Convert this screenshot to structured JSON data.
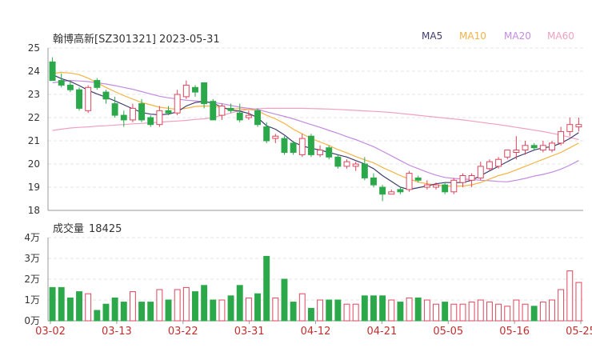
{
  "chart_data": {
    "type": "candlestick",
    "title": "翰博高新[SZ301321] 2023-05-31",
    "legend": [
      {
        "name": "MA5",
        "color": "#3d3d70"
      },
      {
        "name": "MA10",
        "color": "#f5b342"
      },
      {
        "name": "MA20",
        "color": "#c48be0"
      },
      {
        "name": "MA60",
        "color": "#f0a0c0"
      }
    ],
    "price_axis": {
      "min": 18,
      "max": 25,
      "ticks": [
        25,
        24,
        23,
        22,
        21,
        20,
        19,
        18
      ]
    },
    "volume_axis": {
      "min": 0,
      "max": 40000,
      "ticks": [
        "4万",
        "3万",
        "2万",
        "1万",
        "0万"
      ]
    },
    "x_tick_labels": [
      "03-02",
      "03-13",
      "03-22",
      "03-31",
      "04-12",
      "04-21",
      "05-05",
      "05-16",
      "05-25"
    ],
    "volume_label": "成交量",
    "volume_value": "18425",
    "candles": [
      {
        "o": 24.4,
        "h": 24.6,
        "l": 23.6,
        "c": 23.6
      },
      {
        "o": 23.6,
        "h": 23.9,
        "l": 23.3,
        "c": 23.4
      },
      {
        "o": 23.4,
        "h": 23.6,
        "l": 23.1,
        "c": 23.2
      },
      {
        "o": 23.2,
        "h": 23.3,
        "l": 22.3,
        "c": 22.4
      },
      {
        "o": 22.3,
        "h": 23.4,
        "l": 22.2,
        "c": 23.3
      },
      {
        "o": 23.6,
        "h": 23.7,
        "l": 23.2,
        "c": 23.3
      },
      {
        "o": 23.1,
        "h": 23.2,
        "l": 22.6,
        "c": 22.8
      },
      {
        "o": 22.6,
        "h": 22.9,
        "l": 22.0,
        "c": 22.1
      },
      {
        "o": 22.1,
        "h": 22.3,
        "l": 21.6,
        "c": 21.9
      },
      {
        "o": 21.9,
        "h": 22.6,
        "l": 21.8,
        "c": 22.4
      },
      {
        "o": 22.6,
        "h": 22.8,
        "l": 21.8,
        "c": 21.9
      },
      {
        "o": 22.0,
        "h": 22.1,
        "l": 21.6,
        "c": 21.7
      },
      {
        "o": 21.7,
        "h": 22.5,
        "l": 21.6,
        "c": 22.3
      },
      {
        "o": 22.3,
        "h": 22.5,
        "l": 22.1,
        "c": 22.2
      },
      {
        "o": 22.2,
        "h": 23.2,
        "l": 22.1,
        "c": 23.0
      },
      {
        "o": 22.9,
        "h": 23.6,
        "l": 22.8,
        "c": 23.4
      },
      {
        "o": 23.3,
        "h": 23.4,
        "l": 22.9,
        "c": 23.1
      },
      {
        "o": 23.5,
        "h": 23.5,
        "l": 22.4,
        "c": 22.6
      },
      {
        "o": 22.7,
        "h": 22.8,
        "l": 21.9,
        "c": 21.9
      },
      {
        "o": 22.1,
        "h": 22.6,
        "l": 21.9,
        "c": 22.5
      },
      {
        "o": 22.4,
        "h": 22.6,
        "l": 22.2,
        "c": 22.3
      },
      {
        "o": 22.2,
        "h": 22.6,
        "l": 21.8,
        "c": 21.9
      },
      {
        "o": 22.0,
        "h": 22.3,
        "l": 21.9,
        "c": 22.1
      },
      {
        "o": 22.3,
        "h": 22.4,
        "l": 21.6,
        "c": 21.7
      },
      {
        "o": 21.6,
        "h": 21.8,
        "l": 20.9,
        "c": 21.0
      },
      {
        "o": 21.1,
        "h": 21.3,
        "l": 20.9,
        "c": 21.2
      },
      {
        "o": 21.1,
        "h": 21.2,
        "l": 20.4,
        "c": 20.5
      },
      {
        "o": 20.9,
        "h": 21.0,
        "l": 20.4,
        "c": 20.5
      },
      {
        "o": 20.4,
        "h": 21.3,
        "l": 20.3,
        "c": 21.1
      },
      {
        "o": 21.2,
        "h": 21.3,
        "l": 20.3,
        "c": 20.4
      },
      {
        "o": 20.4,
        "h": 20.8,
        "l": 20.3,
        "c": 20.6
      },
      {
        "o": 20.7,
        "h": 20.8,
        "l": 20.2,
        "c": 20.3
      },
      {
        "o": 20.3,
        "h": 20.4,
        "l": 19.8,
        "c": 19.9
      },
      {
        "o": 19.9,
        "h": 20.2,
        "l": 19.8,
        "c": 20.1
      },
      {
        "o": 19.9,
        "h": 20.1,
        "l": 19.7,
        "c": 20.0
      },
      {
        "o": 20.0,
        "h": 20.3,
        "l": 19.3,
        "c": 19.4
      },
      {
        "o": 19.4,
        "h": 19.6,
        "l": 19.0,
        "c": 19.1
      },
      {
        "o": 19.0,
        "h": 19.1,
        "l": 18.4,
        "c": 18.7
      },
      {
        "o": 18.7,
        "h": 18.9,
        "l": 18.7,
        "c": 18.8
      },
      {
        "o": 18.9,
        "h": 19.0,
        "l": 18.7,
        "c": 18.8
      },
      {
        "o": 18.9,
        "h": 19.7,
        "l": 18.8,
        "c": 19.6
      },
      {
        "o": 19.4,
        "h": 19.5,
        "l": 19.2,
        "c": 19.3
      },
      {
        "o": 19.0,
        "h": 19.3,
        "l": 18.9,
        "c": 19.1
      },
      {
        "o": 19.0,
        "h": 19.2,
        "l": 18.9,
        "c": 19.1
      },
      {
        "o": 19.1,
        "h": 19.2,
        "l": 18.7,
        "c": 18.8
      },
      {
        "o": 18.8,
        "h": 19.4,
        "l": 18.7,
        "c": 19.3
      },
      {
        "o": 19.2,
        "h": 19.6,
        "l": 19.0,
        "c": 19.5
      },
      {
        "o": 19.3,
        "h": 19.6,
        "l": 19.0,
        "c": 19.5
      },
      {
        "o": 19.4,
        "h": 20.1,
        "l": 19.3,
        "c": 19.9
      },
      {
        "o": 19.8,
        "h": 20.2,
        "l": 19.7,
        "c": 20.1
      },
      {
        "o": 19.9,
        "h": 20.3,
        "l": 19.8,
        "c": 20.2
      },
      {
        "o": 20.3,
        "h": 20.6,
        "l": 20.2,
        "c": 20.6
      },
      {
        "o": 20.5,
        "h": 21.2,
        "l": 20.2,
        "c": 20.6
      },
      {
        "o": 20.6,
        "h": 21.0,
        "l": 20.4,
        "c": 20.8
      },
      {
        "o": 20.8,
        "h": 20.9,
        "l": 20.6,
        "c": 20.7
      },
      {
        "o": 20.6,
        "h": 21.0,
        "l": 20.5,
        "c": 20.8
      },
      {
        "o": 20.6,
        "h": 21.0,
        "l": 20.5,
        "c": 20.9
      },
      {
        "o": 20.9,
        "h": 21.6,
        "l": 20.8,
        "c": 21.4
      },
      {
        "o": 21.4,
        "h": 22.0,
        "l": 21.2,
        "c": 21.7
      },
      {
        "o": 21.6,
        "h": 22.0,
        "l": 21.4,
        "c": 21.7
      }
    ],
    "volumes": [
      16000,
      16000,
      11000,
      14000,
      13000,
      5000,
      8000,
      11000,
      9000,
      14000,
      9000,
      9000,
      15000,
      10000,
      15000,
      16000,
      14000,
      17000,
      10000,
      10000,
      12000,
      17000,
      11000,
      13000,
      31000,
      11000,
      20000,
      9000,
      13000,
      6000,
      10000,
      10000,
      10000,
      8000,
      8000,
      12000,
      12000,
      12000,
      10000,
      9000,
      11000,
      11000,
      10000,
      8000,
      9000,
      8000,
      8000,
      9000,
      10000,
      9000,
      8000,
      7000,
      10000,
      8000,
      7000,
      9000,
      10000,
      15000,
      24000,
      18425
    ],
    "ma5": [
      23.85,
      23.68,
      23.56,
      23.38,
      23.18,
      23.02,
      22.88,
      22.72,
      22.55,
      22.38,
      22.22,
      22.15,
      22.12,
      22.15,
      22.25,
      22.5,
      22.65,
      22.7,
      22.62,
      22.45,
      22.32,
      22.28,
      22.18,
      22.0,
      21.65,
      21.5,
      21.25,
      20.95,
      20.78,
      20.68,
      20.6,
      20.5,
      20.4,
      20.3,
      20.15,
      20.0,
      19.8,
      19.5,
      19.25,
      19.0,
      18.9,
      18.98,
      19.05,
      19.15,
      19.2,
      19.2,
      19.2,
      19.3,
      19.5,
      19.7,
      19.9,
      20.1,
      20.3,
      20.45,
      20.6,
      20.7,
      20.75,
      20.9,
      21.1,
      21.35
    ],
    "ma10": [
      23.9,
      23.95,
      23.92,
      23.85,
      23.7,
      23.5,
      23.3,
      23.12,
      22.95,
      22.8,
      22.65,
      22.55,
      22.45,
      22.4,
      22.35,
      22.4,
      22.48,
      22.5,
      22.5,
      22.42,
      22.38,
      22.38,
      22.35,
      22.3,
      22.1,
      21.95,
      21.75,
      21.5,
      21.3,
      21.1,
      20.95,
      20.8,
      20.62,
      20.48,
      20.32,
      20.18,
      20.05,
      19.85,
      19.68,
      19.5,
      19.35,
      19.22,
      19.15,
      19.1,
      19.05,
      19.05,
      19.05,
      19.1,
      19.2,
      19.35,
      19.5,
      19.6,
      19.75,
      19.9,
      20.05,
      20.2,
      20.35,
      20.5,
      20.7,
      20.9
    ],
    "ma20": [
      23.5,
      23.55,
      23.6,
      23.58,
      23.55,
      23.5,
      23.45,
      23.38,
      23.3,
      23.22,
      23.12,
      23.02,
      22.92,
      22.85,
      22.8,
      22.75,
      22.72,
      22.68,
      22.65,
      22.6,
      22.52,
      22.45,
      22.4,
      22.35,
      22.25,
      22.15,
      22.05,
      21.95,
      21.82,
      21.7,
      21.58,
      21.45,
      21.32,
      21.18,
      21.05,
      20.9,
      20.75,
      20.55,
      20.35,
      20.15,
      19.95,
      19.8,
      19.65,
      19.52,
      19.42,
      19.38,
      19.35,
      19.33,
      19.3,
      19.28,
      19.25,
      19.23,
      19.3,
      19.38,
      19.48,
      19.55,
      19.65,
      19.78,
      19.95,
      20.15
    ],
    "ma60": [
      21.45,
      21.5,
      21.55,
      21.58,
      21.6,
      21.63,
      21.65,
      21.68,
      21.7,
      21.73,
      21.75,
      21.78,
      21.8,
      21.83,
      21.85,
      21.88,
      21.92,
      21.95,
      22.0,
      22.1,
      22.2,
      22.3,
      22.35,
      22.38,
      22.4,
      22.4,
      22.4,
      22.4,
      22.4,
      22.39,
      22.38,
      22.37,
      22.35,
      22.33,
      22.31,
      22.29,
      22.27,
      22.25,
      22.22,
      22.18,
      22.14,
      22.1,
      22.06,
      22.02,
      21.98,
      21.94,
      21.9,
      21.85,
      21.8,
      21.75,
      21.7,
      21.64,
      21.58,
      21.52,
      21.46,
      21.4,
      21.32,
      21.25,
      21.15,
      21.05
    ]
  }
}
